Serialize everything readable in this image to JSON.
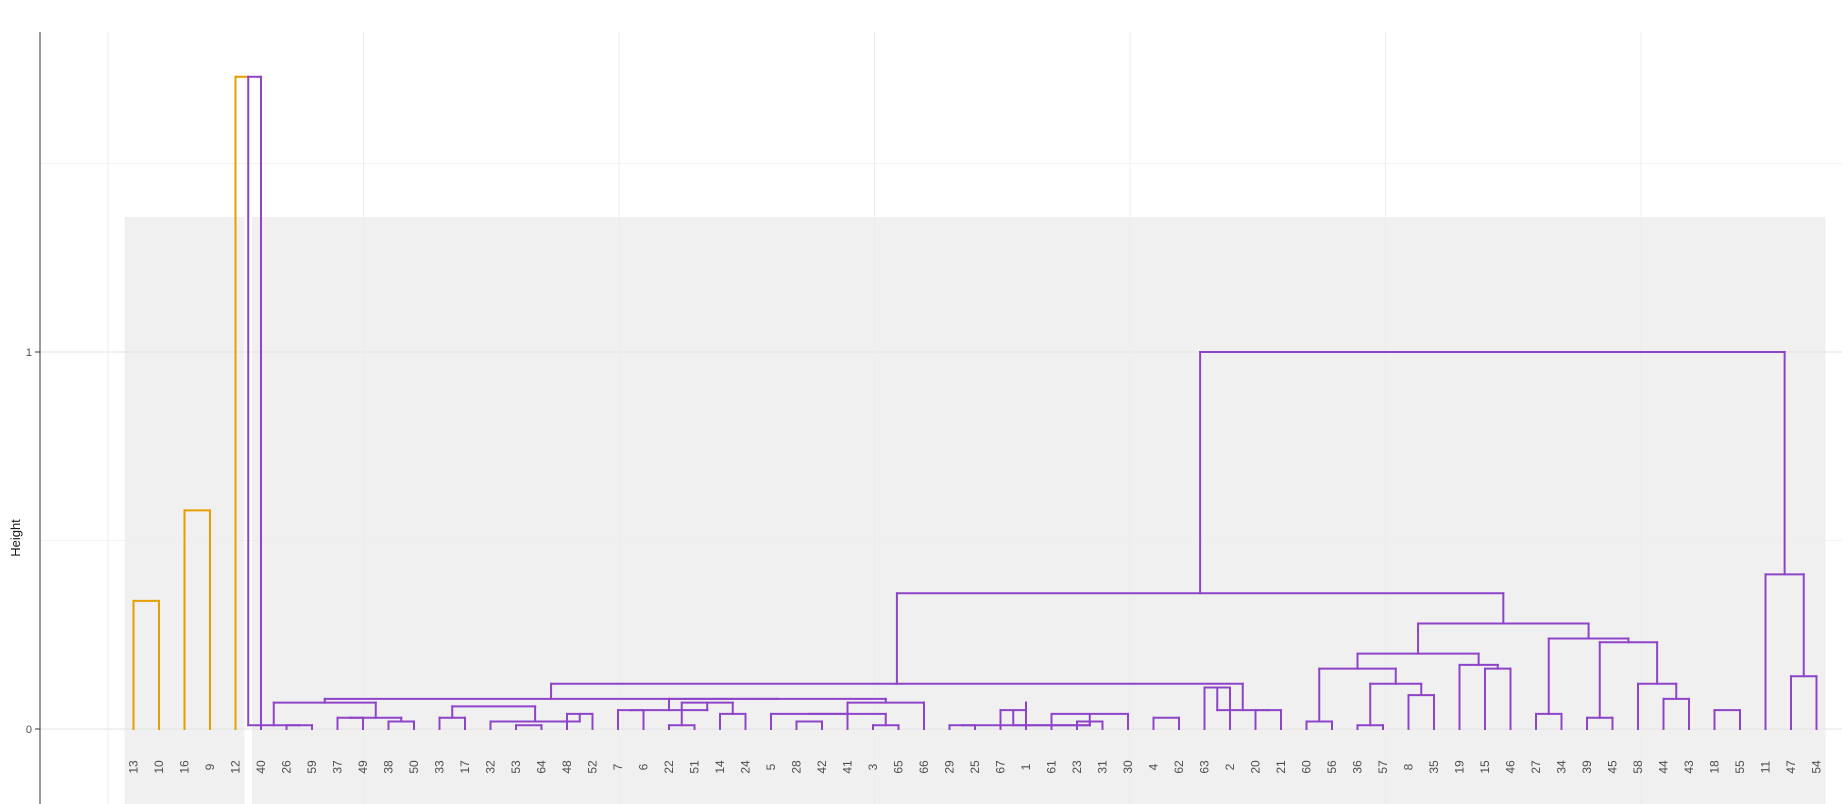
{
  "chart_data": {
    "type": "dendrogram",
    "ylabel": "Height",
    "y_ticks": [
      0,
      1
    ],
    "y_range": [
      -0.2,
      1.85
    ],
    "grid": true,
    "clusters": [
      {
        "color": "#E69F00",
        "leaves": [
          "13",
          "10",
          "16",
          "9",
          "12"
        ]
      },
      {
        "color": "#8E44C9",
        "leaves": [
          "40",
          "26",
          "59",
          "37",
          "49",
          "38",
          "50",
          "33",
          "17",
          "32",
          "53",
          "64",
          "48",
          "52",
          "7",
          "6",
          "22",
          "51",
          "14",
          "24",
          "5",
          "28",
          "42",
          "41",
          "3",
          "65",
          "66",
          "29",
          "25",
          "67",
          "1",
          "61",
          "23",
          "31",
          "30",
          "4",
          "62",
          "63",
          "2",
          "20",
          "21",
          "60",
          "56",
          "36",
          "57",
          "8",
          "35",
          "19",
          "15",
          "46",
          "27",
          "34",
          "39",
          "45",
          "58",
          "44",
          "43",
          "18",
          "55",
          "11",
          "47",
          "54"
        ]
      }
    ],
    "leaf_order": [
      "13",
      "10",
      "16",
      "9",
      "12",
      "40",
      "26",
      "59",
      "37",
      "49",
      "38",
      "50",
      "33",
      "17",
      "32",
      "53",
      "64",
      "48",
      "52",
      "7",
      "6",
      "22",
      "51",
      "14",
      "24",
      "5",
      "28",
      "42",
      "41",
      "3",
      "65",
      "66",
      "29",
      "25",
      "67",
      "1",
      "61",
      "23",
      "31",
      "30",
      "4",
      "62",
      "63",
      "2",
      "20",
      "21",
      "60",
      "56",
      "36",
      "57",
      "8",
      "35",
      "19",
      "15",
      "46",
      "27",
      "34",
      "39",
      "45",
      "58",
      "44",
      "43",
      "18",
      "55",
      "11",
      "47",
      "54"
    ],
    "merges": [
      [
        "13",
        "10",
        0.34
      ],
      [
        "16",
        "9",
        0.58
      ],
      [
        "12",
        "40",
        1.73
      ],
      [
        "26",
        "59",
        0.01
      ],
      [
        "38",
        "50",
        0.02
      ],
      [
        "33",
        "17",
        0.03
      ],
      [
        "53",
        "64",
        0.01
      ],
      [
        "48",
        "52",
        0.04
      ],
      [
        "22",
        "51",
        0.01
      ],
      [
        "28",
        "42",
        0.02
      ],
      [
        "3",
        "65",
        0.01
      ],
      [
        "29",
        "25",
        0.01
      ],
      [
        "67",
        "1",
        0.05
      ],
      [
        "23",
        "31",
        0.02
      ],
      [
        "4",
        "62",
        0.03
      ],
      [
        "60",
        "56",
        0.02
      ],
      [
        "36",
        "57",
        0.01
      ],
      [
        "27",
        "34",
        0.04
      ],
      [
        "39",
        "45",
        0.03
      ],
      [
        "18",
        "55",
        0.05
      ],
      [
        "47",
        "54",
        0.14
      ],
      [
        "32",
        "48",
        0.02
      ],
      [
        "37",
        "49",
        0.03
      ],
      [
        "7",
        "6",
        0.05
      ],
      [
        "61",
        "30",
        0.04
      ],
      [
        "20",
        "21",
        0.05
      ],
      [
        "8",
        "35",
        0.09
      ],
      [
        "15",
        "46",
        0.16
      ],
      [
        "44",
        "43",
        0.08
      ],
      [
        "14",
        "24",
        0.04
      ],
      [
        "5",
        "41",
        0.04
      ],
      [
        "40",
        "59",
        0.01
      ],
      [
        "25",
        "61",
        0.01
      ],
      [
        "63",
        "2",
        0.11
      ],
      [
        "37",
        "38",
        0.03
      ],
      [
        "33",
        "32",
        0.06
      ],
      [
        "22",
        "14",
        0.07
      ],
      [
        "41",
        "3",
        0.04
      ],
      [
        "67",
        "23",
        0.01
      ],
      [
        "2",
        "20",
        0.05
      ],
      [
        "36",
        "8",
        0.12
      ],
      [
        "58",
        "44",
        0.12
      ],
      [
        "41",
        "66",
        0.07
      ],
      [
        "40",
        "37",
        0.07
      ],
      [
        "7",
        "22",
        0.05
      ],
      [
        "29",
        "30",
        0.07
      ],
      [
        "56",
        "36",
        0.16
      ],
      [
        "19",
        "15",
        0.17
      ],
      [
        "39",
        "58",
        0.23
      ],
      [
        "7",
        "41",
        0.08
      ],
      [
        "40",
        "7",
        0.08
      ],
      [
        "40",
        "63",
        0.12
      ],
      [
        "56",
        "19",
        0.2
      ],
      [
        "27",
        "39",
        0.24
      ],
      [
        "56",
        "27",
        0.28
      ],
      [
        "40",
        "56",
        0.36
      ],
      [
        "11",
        "47",
        0.41
      ],
      [
        "40",
        "11",
        1.0
      ]
    ]
  }
}
